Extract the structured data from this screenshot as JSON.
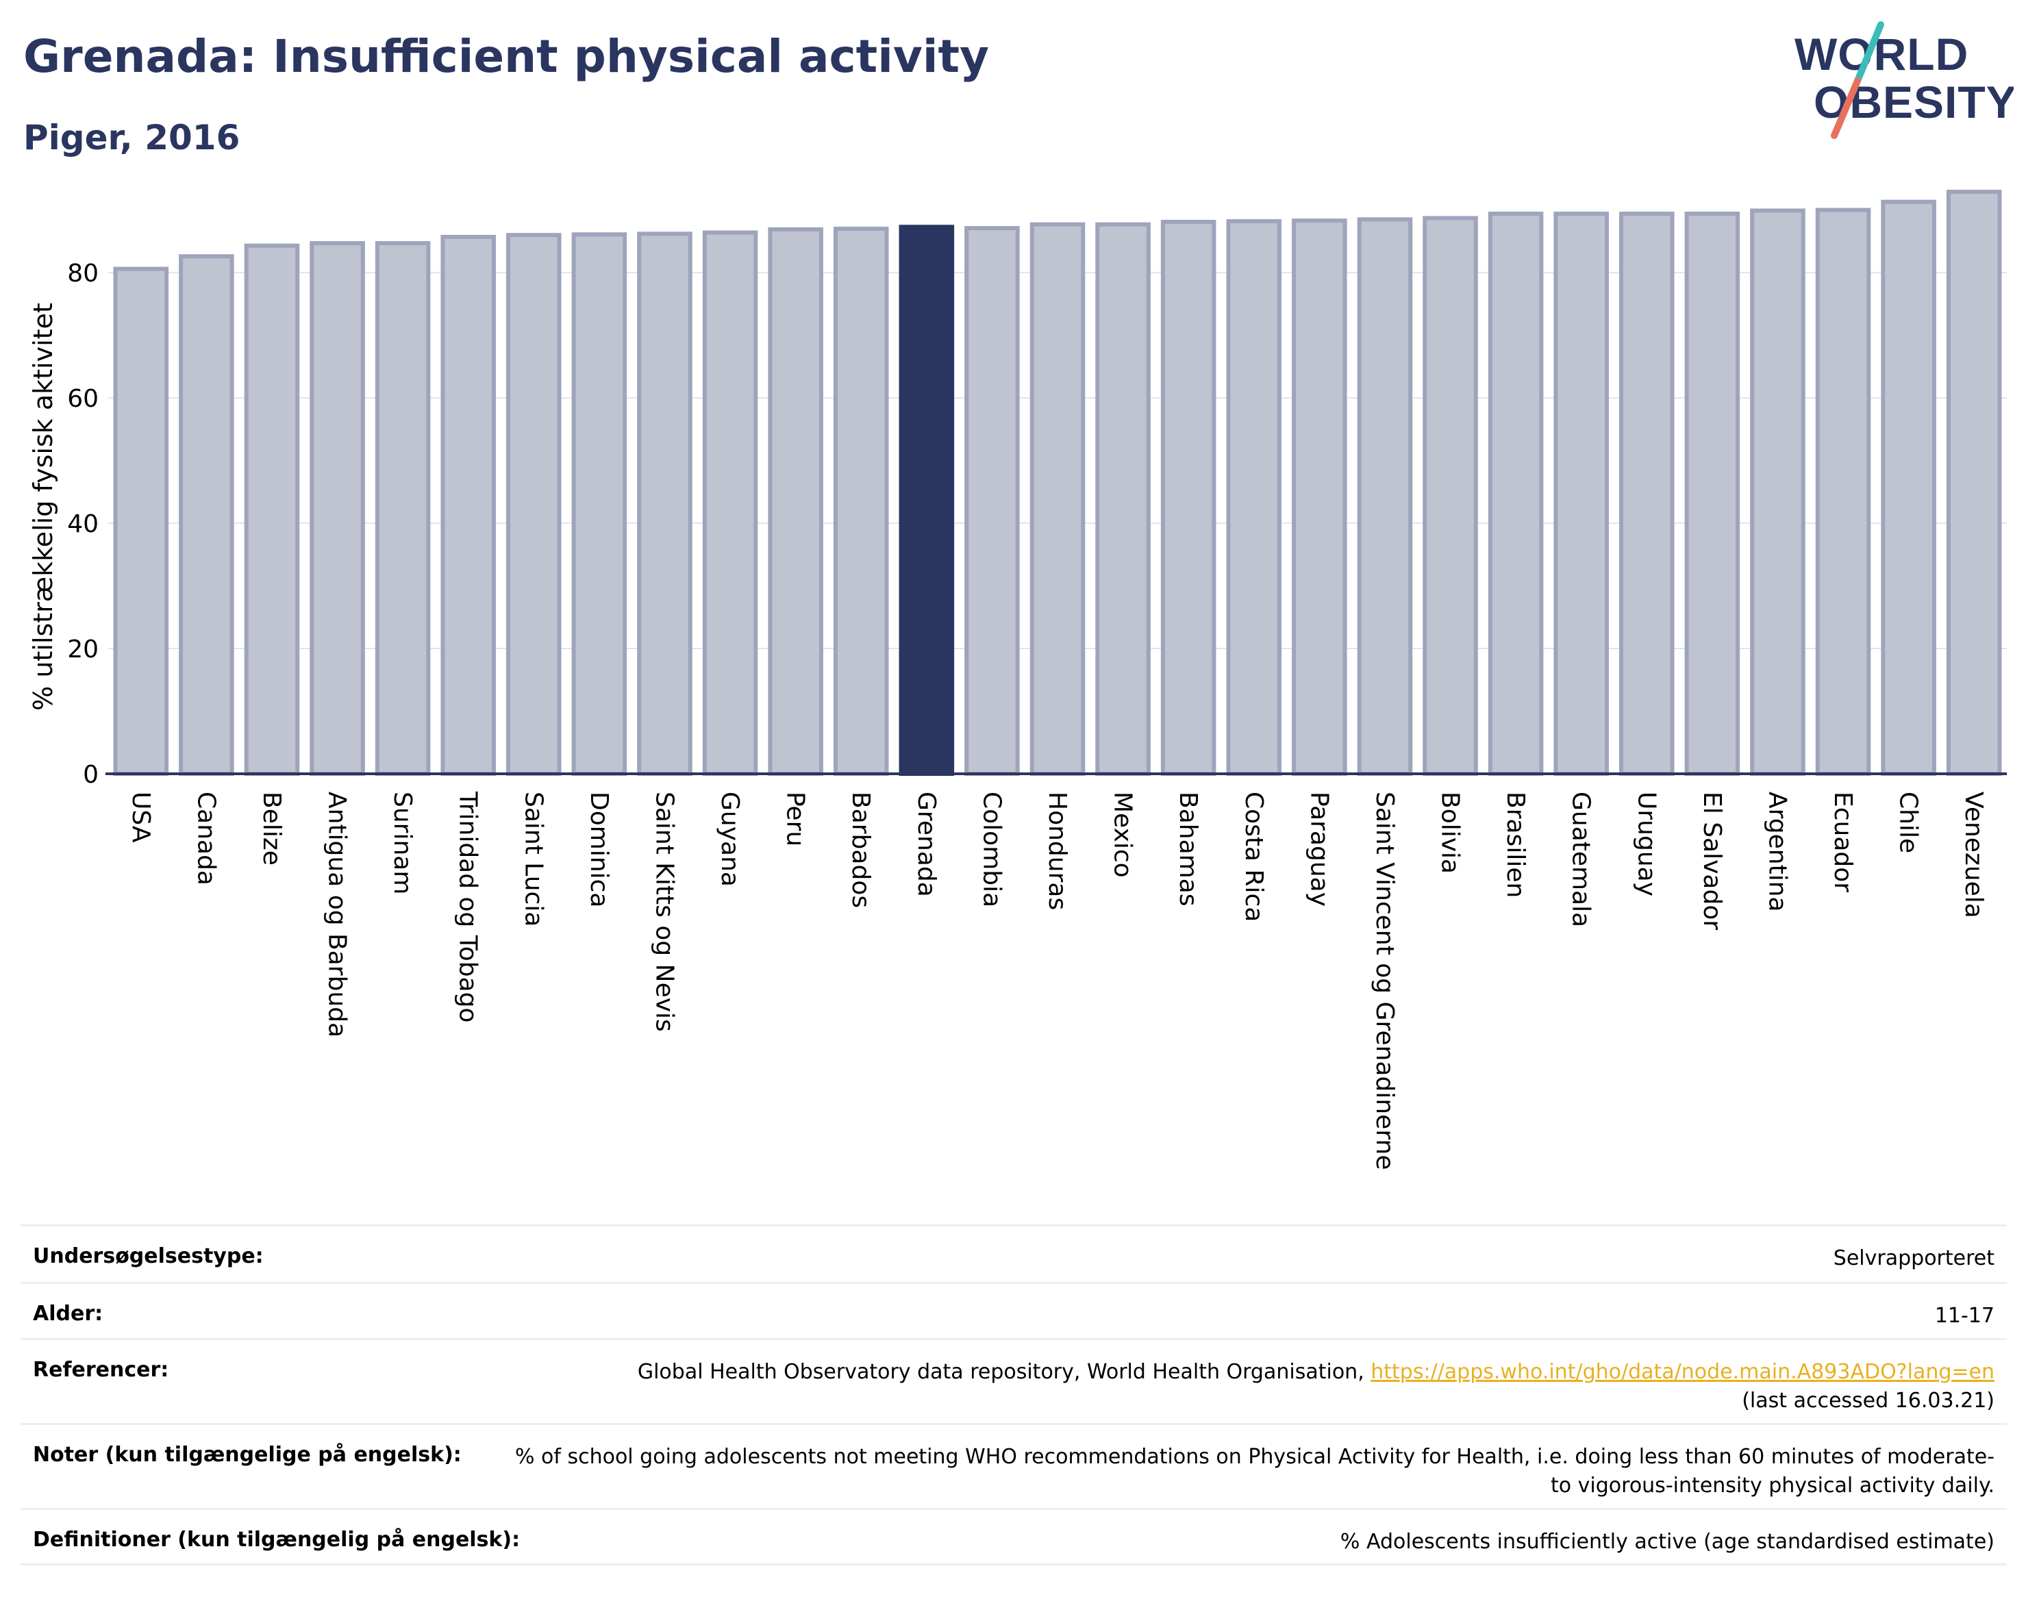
{
  "header": {
    "title": "Grenada: Insufficient physical activity",
    "subtitle": "Piger, 2016",
    "logo_line1": "WORLD",
    "logo_line2": "OBESITY"
  },
  "colors": {
    "title": "#2a3560",
    "bar": "#c0c3d0",
    "bar_border": "#9ea4bc",
    "highlight": "#2a3560",
    "link": "#e8b021",
    "logo_teal": "#3cbcb8",
    "logo_coral": "#e8705e"
  },
  "chart_data": {
    "type": "bar",
    "title": "Grenada: Insufficient physical activity",
    "subtitle": "Piger, 2016",
    "ylabel": "% utilstrækkelig fysisk aktivitet",
    "xlabel": "",
    "ylim": [
      0,
      94
    ],
    "yticks": [
      0,
      20,
      40,
      60,
      80
    ],
    "grid": true,
    "highlight": "Grenada",
    "categories": [
      "USA",
      "Canada",
      "Belize",
      "Antigua og Barbuda",
      "Surinam",
      "Trinidad og Tobago",
      "Saint Lucia",
      "Dominica",
      "Saint Kitts og Nevis",
      "Guyana",
      "Peru",
      "Barbados",
      "Grenada",
      "Colombia",
      "Honduras",
      "Mexico",
      "Bahamas",
      "Costa Rica",
      "Paraguay",
      "Saint Vincent og Grenadinerne",
      "Bolivia",
      "Brasilien",
      "Guatemala",
      "Uruguay",
      "El Salvador",
      "Argentina",
      "Ecuador",
      "Chile",
      "Venezuela"
    ],
    "values": [
      80.6,
      82.6,
      84.3,
      84.7,
      84.7,
      85.7,
      86.0,
      86.1,
      86.2,
      86.4,
      86.9,
      87.0,
      87.3,
      87.1,
      87.7,
      87.7,
      88.1,
      88.2,
      88.3,
      88.5,
      88.7,
      89.4,
      89.4,
      89.4,
      89.4,
      89.9,
      90.0,
      91.3,
      92.9
    ]
  },
  "info": {
    "survey_label": "Undersøgelsestype:",
    "survey_value": "Selvrapporteret",
    "age_label": "Alder:",
    "age_value": "11-17",
    "ref_label": "Referencer:",
    "ref_text": "Global Health Observatory data repository, World Health Organisation, ",
    "ref_link": "https://apps.who.int/gho/data/node.main.A893ADO?lang=en",
    "ref_accessed": "(last accessed 16.03.21)",
    "notes_label": "Noter (kun tilgængelige på engelsk):",
    "notes_value": "% of school going adolescents not meeting WHO recommendations on Physical Activity for Health, i.e. doing less than 60 minutes of moderate- to vigorous-intensity physical activity daily.",
    "def_label": "Definitioner (kun tilgængelig på engelsk):",
    "def_value": "% Adolescents insufficiently active (age standardised estimate)"
  }
}
